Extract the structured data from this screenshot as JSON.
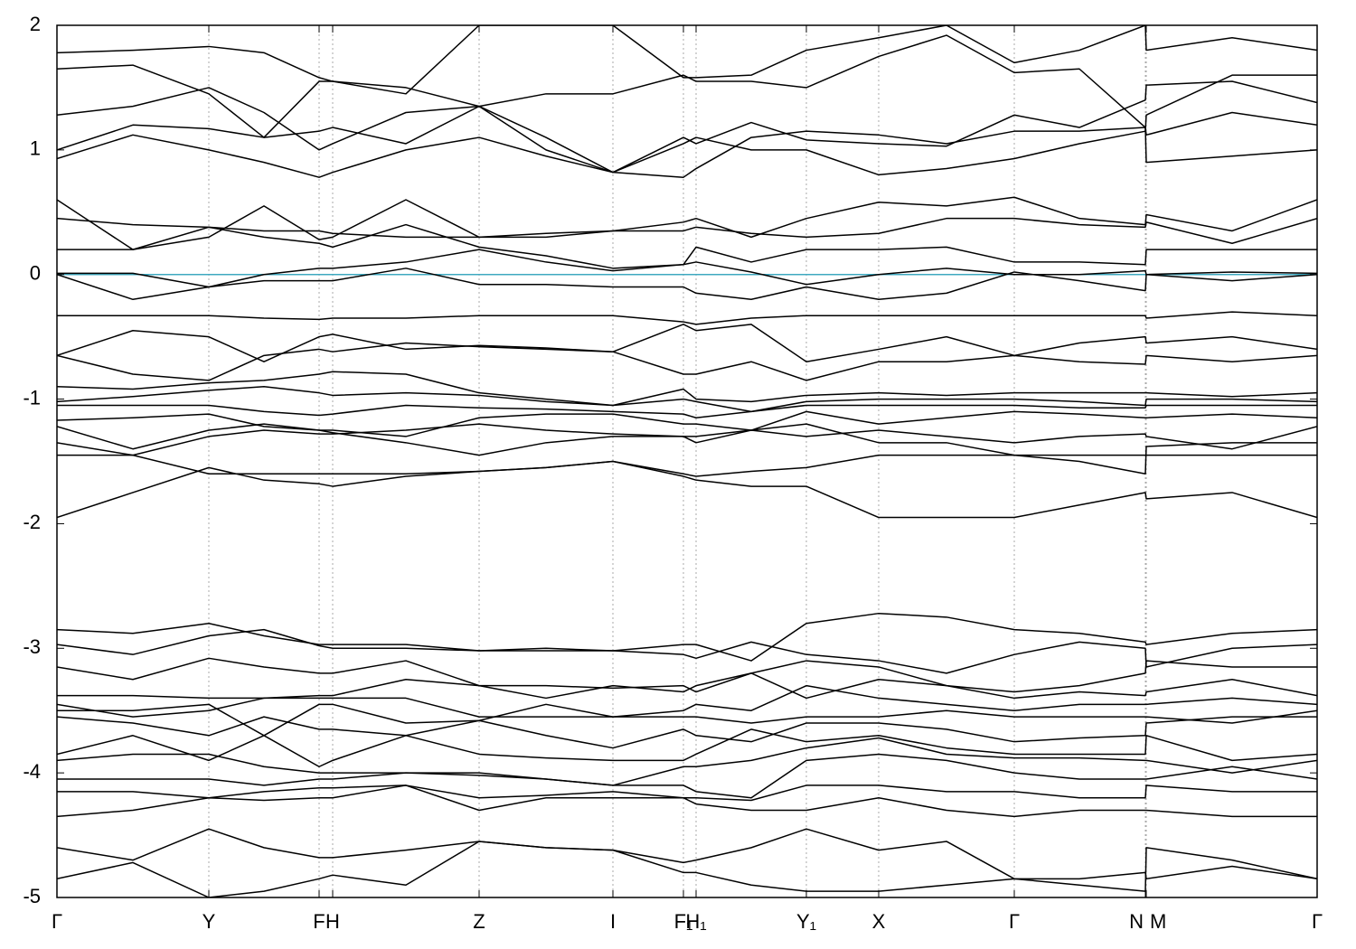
{
  "chart_data": {
    "type": "line",
    "color": "#000000",
    "fermi_line": {
      "value": 0,
      "color": "#3fa9c0"
    },
    "grid": true,
    "xlim": [
      0,
      13.94
    ],
    "ylim": [
      -5,
      2
    ],
    "yticks": [
      2,
      1,
      0,
      -1,
      -2,
      -3,
      -4,
      -5
    ],
    "xticks": [
      {
        "value": 0,
        "label": "Γ"
      },
      {
        "value": 1.68,
        "label": "Y"
      },
      {
        "value": 2.9,
        "label": "F"
      },
      {
        "value": 3.05,
        "label": "H"
      },
      {
        "value": 4.67,
        "label": "Z"
      },
      {
        "value": 6.15,
        "label": "I"
      },
      {
        "value": 6.93,
        "label": "F₁"
      },
      {
        "value": 7.07,
        "label": "H₁"
      },
      {
        "value": 8.29,
        "label": "Y₁"
      },
      {
        "value": 9.09,
        "label": "X"
      },
      {
        "value": 10.59,
        "label": "Γ"
      },
      {
        "value": 12.04,
        "label": "N"
      },
      {
        "value": 12.05,
        "label": "M"
      },
      {
        "value": 13.94,
        "label": "Γ"
      }
    ],
    "x": [
      0,
      0.84,
      1.68,
      2.29,
      2.9,
      3.05,
      3.86,
      4.67,
      5.41,
      6.15,
      6.93,
      7.07,
      7.68,
      8.29,
      9.09,
      9.84,
      10.59,
      11.31,
      12.04,
      12.05,
      13.0,
      13.94
    ],
    "series": [
      {
        "values": [
          0.93,
          1.12,
          1.0,
          0.9,
          0.78,
          0.82,
          1.0,
          1.1,
          0.95,
          0.82,
          0.78,
          0.85,
          1.1,
          1.15,
          1.12,
          1.05,
          1.15,
          1.15,
          1.18,
          0.9,
          0.95,
          1.0
        ]
      },
      {
        "values": [
          1.0,
          1.2,
          1.17,
          1.1,
          1.15,
          1.18,
          1.05,
          1.35,
          1.45,
          1.45,
          1.6,
          1.55,
          1.55,
          1.5,
          1.75,
          1.92,
          1.62,
          1.65,
          1.18,
          1.12,
          1.3,
          1.2
        ]
      },
      {
        "values": [
          1.28,
          1.35,
          1.5,
          1.3,
          1.0,
          1.05,
          1.3,
          1.35,
          1.1,
          0.82,
          1.1,
          1.05,
          1.22,
          1.08,
          1.05,
          1.03,
          1.28,
          1.18,
          1.4,
          1.52,
          1.55,
          1.38
        ]
      },
      {
        "values": [
          1.65,
          1.68,
          1.45,
          1.1,
          1.55,
          1.55,
          1.5,
          1.35,
          1.0,
          0.82,
          1.05,
          1.1,
          1.0,
          1.0,
          0.8,
          0.85,
          0.93,
          1.05,
          1.15,
          1.28,
          1.6,
          1.6
        ]
      },
      {
        "values": [
          1.78,
          1.8,
          1.83,
          1.78,
          1.58,
          1.55,
          1.45,
          2.0,
          2.0,
          2.0,
          1.58,
          1.58,
          1.6,
          1.8,
          1.9,
          2.0,
          1.7,
          1.8,
          2.0,
          1.8,
          1.9,
          1.8
        ]
      },
      {
        "values": [
          0.6,
          0.2,
          0.3,
          0.55,
          0.28,
          0.3,
          0.6,
          0.3,
          0.3,
          0.35,
          0.42,
          0.45,
          0.3,
          0.45,
          0.58,
          0.55,
          0.62,
          0.45,
          0.4,
          0.48,
          0.35,
          0.6
        ]
      },
      {
        "values": [
          0.45,
          0.4,
          0.38,
          0.35,
          0.35,
          0.33,
          0.3,
          0.3,
          0.33,
          0.35,
          0.35,
          0.38,
          0.33,
          0.3,
          0.33,
          0.45,
          0.45,
          0.4,
          0.38,
          0.42,
          0.25,
          0.45
        ]
      },
      {
        "values": [
          0.2,
          0.2,
          0.38,
          0.3,
          0.25,
          0.22,
          0.4,
          0.22,
          0.15,
          0.05,
          0.08,
          0.22,
          0.1,
          0.2,
          0.2,
          0.22,
          0.1,
          0.1,
          0.08,
          0.2,
          0.2,
          0.2
        ]
      },
      {
        "values": [
          0.01,
          0.01,
          -0.1,
          0.0,
          0.05,
          0.05,
          0.1,
          0.2,
          0.1,
          0.03,
          0.08,
          0.1,
          0.02,
          -0.08,
          0.0,
          0.05,
          0.0,
          0.0,
          0.03,
          0.0,
          0.02,
          0.01
        ]
      },
      {
        "values": [
          0.0,
          -0.2,
          -0.1,
          -0.05,
          -0.05,
          -0.05,
          0.05,
          -0.08,
          -0.08,
          -0.1,
          -0.1,
          -0.15,
          -0.2,
          -0.1,
          -0.2,
          -0.15,
          0.02,
          -0.05,
          -0.13,
          0.0,
          -0.05,
          0.0
        ]
      },
      {
        "values": [
          -0.33,
          -0.33,
          -0.33,
          -0.35,
          -0.36,
          -0.35,
          -0.35,
          -0.33,
          -0.33,
          -0.33,
          -0.38,
          -0.4,
          -0.35,
          -0.33,
          -0.33,
          -0.33,
          -0.33,
          -0.33,
          -0.33,
          -0.35,
          -0.3,
          -0.33
        ]
      },
      {
        "values": [
          -0.65,
          -0.45,
          -0.5,
          -0.7,
          -0.5,
          -0.48,
          -0.6,
          -0.57,
          -0.59,
          -0.62,
          -0.4,
          -0.45,
          -0.4,
          -0.7,
          -0.6,
          -0.5,
          -0.65,
          -0.55,
          -0.5,
          -0.55,
          -0.5,
          -0.6
        ]
      },
      {
        "values": [
          -0.65,
          -0.8,
          -0.85,
          -0.65,
          -0.6,
          -0.62,
          -0.55,
          -0.58,
          -0.6,
          -0.62,
          -0.8,
          -0.8,
          -0.7,
          -0.85,
          -0.7,
          -0.7,
          -0.65,
          -0.7,
          -0.72,
          -0.65,
          -0.7,
          -0.65
        ]
      },
      {
        "values": [
          -0.9,
          -0.92,
          -0.87,
          -0.85,
          -0.8,
          -0.78,
          -0.8,
          -0.95,
          -1.0,
          -1.05,
          -0.92,
          -1.0,
          -1.02,
          -0.97,
          -0.95,
          -0.97,
          -0.95,
          -0.95,
          -0.95,
          -0.95,
          -0.98,
          -0.95
        ]
      },
      {
        "values": [
          -1.02,
          -0.98,
          -0.93,
          -0.9,
          -0.95,
          -0.97,
          -0.95,
          -0.97,
          -1.02,
          -1.05,
          -1.0,
          -1.02,
          -1.1,
          -1.02,
          -1.0,
          -1.0,
          -1.0,
          -1.02,
          -1.05,
          -1.0,
          -1.0,
          -1.02
        ]
      },
      {
        "values": [
          -1.05,
          -1.05,
          -1.05,
          -1.1,
          -1.13,
          -1.12,
          -1.05,
          -1.07,
          -1.08,
          -1.1,
          -1.12,
          -1.15,
          -1.1,
          -1.05,
          -1.05,
          -1.05,
          -1.05,
          -1.07,
          -1.07,
          -1.05,
          -1.05,
          -1.05
        ]
      },
      {
        "values": [
          -1.17,
          -1.15,
          -1.12,
          -1.22,
          -1.25,
          -1.25,
          -1.3,
          -1.15,
          -1.12,
          -1.12,
          -1.2,
          -1.2,
          -1.25,
          -1.1,
          -1.2,
          -1.15,
          -1.1,
          -1.12,
          -1.15,
          -1.15,
          -1.12,
          -1.15
        ]
      },
      {
        "values": [
          -1.22,
          -1.4,
          -1.25,
          -1.2,
          -1.25,
          -1.27,
          -1.35,
          -1.45,
          -1.35,
          -1.3,
          -1.3,
          -1.35,
          -1.25,
          -1.3,
          -1.25,
          -1.3,
          -1.35,
          -1.3,
          -1.28,
          -1.3,
          -1.4,
          -1.22
        ]
      },
      {
        "values": [
          -1.35,
          -1.45,
          -1.3,
          -1.25,
          -1.28,
          -1.28,
          -1.25,
          -1.2,
          -1.25,
          -1.28,
          -1.3,
          -1.3,
          -1.25,
          -1.2,
          -1.35,
          -1.35,
          -1.45,
          -1.5,
          -1.6,
          -1.38,
          -1.35,
          -1.35
        ]
      },
      {
        "values": [
          -1.45,
          -1.45,
          -1.6,
          -1.6,
          -1.6,
          -1.6,
          -1.6,
          -1.58,
          -1.55,
          -1.5,
          -1.6,
          -1.62,
          -1.58,
          -1.55,
          -1.45,
          -1.45,
          -1.45,
          -1.45,
          -1.45,
          -1.45,
          -1.45,
          -1.45
        ]
      },
      {
        "values": [
          -1.95,
          -1.75,
          -1.55,
          -1.65,
          -1.68,
          -1.7,
          -1.62,
          -1.58,
          -1.55,
          -1.5,
          -1.62,
          -1.65,
          -1.7,
          -1.7,
          -1.95,
          -1.95,
          -1.95,
          -1.85,
          -1.75,
          -1.8,
          -1.75,
          -1.95
        ]
      },
      {
        "values": [
          -2.85,
          -2.88,
          -2.8,
          -2.9,
          -2.97,
          -2.97,
          -2.97,
          -3.02,
          -3.02,
          -3.02,
          -2.97,
          -2.97,
          -3.1,
          -2.8,
          -2.72,
          -2.75,
          -2.85,
          -2.88,
          -2.95,
          -2.97,
          -2.88,
          -2.85
        ]
      },
      {
        "values": [
          -2.97,
          -3.05,
          -2.9,
          -2.85,
          -2.98,
          -3.0,
          -3.0,
          -3.02,
          -3.0,
          -3.02,
          -3.05,
          -3.08,
          -2.95,
          -3.05,
          -3.1,
          -3.2,
          -3.05,
          -2.95,
          -3.0,
          -3.15,
          -3.0,
          -2.97
        ]
      },
      {
        "values": [
          -3.15,
          -3.25,
          -3.08,
          -3.15,
          -3.2,
          -3.2,
          -3.1,
          -3.3,
          -3.4,
          -3.3,
          -3.35,
          -3.3,
          -3.2,
          -3.1,
          -3.15,
          -3.3,
          -3.35,
          -3.3,
          -3.2,
          -3.1,
          -3.15,
          -3.15
        ]
      },
      {
        "values": [
          -3.38,
          -3.38,
          -3.4,
          -3.4,
          -3.38,
          -3.38,
          -3.25,
          -3.3,
          -3.3,
          -3.32,
          -3.3,
          -3.35,
          -3.2,
          -3.4,
          -3.25,
          -3.3,
          -3.4,
          -3.35,
          -3.38,
          -3.35,
          -3.25,
          -3.38
        ]
      },
      {
        "values": [
          -3.45,
          -3.55,
          -3.5,
          -3.4,
          -3.4,
          -3.4,
          -3.4,
          -3.55,
          -3.55,
          -3.55,
          -3.5,
          -3.45,
          -3.5,
          -3.3,
          -3.4,
          -3.45,
          -3.5,
          -3.45,
          -3.45,
          -3.45,
          -3.4,
          -3.45
        ]
      },
      {
        "values": [
          -3.5,
          -3.5,
          -3.45,
          -3.7,
          -3.45,
          -3.45,
          -3.6,
          -3.58,
          -3.45,
          -3.55,
          -3.55,
          -3.55,
          -3.6,
          -3.55,
          -3.55,
          -3.5,
          -3.55,
          -3.55,
          -3.55,
          -3.55,
          -3.6,
          -3.5
        ]
      },
      {
        "values": [
          -3.55,
          -3.6,
          -3.7,
          -3.55,
          -3.65,
          -3.65,
          -3.7,
          -3.58,
          -3.7,
          -3.8,
          -3.65,
          -3.7,
          -3.75,
          -3.6,
          -3.6,
          -3.65,
          -3.75,
          -3.72,
          -3.7,
          -3.6,
          -3.55,
          -3.55
        ]
      },
      {
        "values": [
          -3.85,
          -3.7,
          -3.9,
          -3.7,
          -3.95,
          -3.9,
          -3.7,
          -3.85,
          -3.88,
          -3.9,
          -3.9,
          -3.85,
          -3.65,
          -3.75,
          -3.7,
          -3.8,
          -3.85,
          -3.85,
          -3.85,
          -3.7,
          -3.9,
          -3.85
        ]
      },
      {
        "values": [
          -3.9,
          -3.85,
          -3.85,
          -3.95,
          -4.0,
          -4.0,
          -4.0,
          -4.02,
          -4.05,
          -4.1,
          -3.95,
          -3.95,
          -3.9,
          -3.8,
          -3.72,
          -3.85,
          -3.88,
          -3.88,
          -3.9,
          -3.9,
          -4.0,
          -3.9
        ]
      },
      {
        "values": [
          -4.05,
          -4.05,
          -4.05,
          -4.1,
          -4.05,
          -4.05,
          -4.0,
          -4.0,
          -4.05,
          -4.1,
          -4.1,
          -4.15,
          -4.2,
          -3.9,
          -3.85,
          -3.9,
          -4.0,
          -4.05,
          -4.05,
          -4.05,
          -3.95,
          -4.05
        ]
      },
      {
        "values": [
          -4.15,
          -4.15,
          -4.2,
          -4.15,
          -4.12,
          -4.12,
          -4.1,
          -4.2,
          -4.18,
          -4.15,
          -4.2,
          -4.2,
          -4.22,
          -4.1,
          -4.1,
          -4.15,
          -4.15,
          -4.2,
          -4.2,
          -4.1,
          -4.15,
          -4.15
        ]
      },
      {
        "values": [
          -4.35,
          -4.3,
          -4.2,
          -4.22,
          -4.2,
          -4.2,
          -4.1,
          -4.3,
          -4.2,
          -4.2,
          -4.2,
          -4.25,
          -4.3,
          -4.3,
          -4.2,
          -4.3,
          -4.35,
          -4.3,
          -4.3,
          -4.3,
          -4.35,
          -4.35
        ]
      },
      {
        "values": [
          -4.6,
          -4.7,
          -4.45,
          -4.6,
          -4.68,
          -4.68,
          -4.62,
          -4.55,
          -4.6,
          -4.62,
          -4.72,
          -4.7,
          -4.6,
          -4.45,
          -4.62,
          -4.55,
          -4.85,
          -4.85,
          -4.8,
          -4.85,
          -4.75,
          -4.85
        ]
      },
      {
        "values": [
          -4.85,
          -4.72,
          -5.0,
          -4.95,
          -4.85,
          -4.82,
          -4.9,
          -4.55,
          -4.6,
          -4.62,
          -4.8,
          -4.8,
          -4.9,
          -4.95,
          -4.95,
          -4.9,
          -4.85,
          -4.9,
          -4.95,
          -4.6,
          -4.7,
          -4.85
        ]
      }
    ]
  }
}
